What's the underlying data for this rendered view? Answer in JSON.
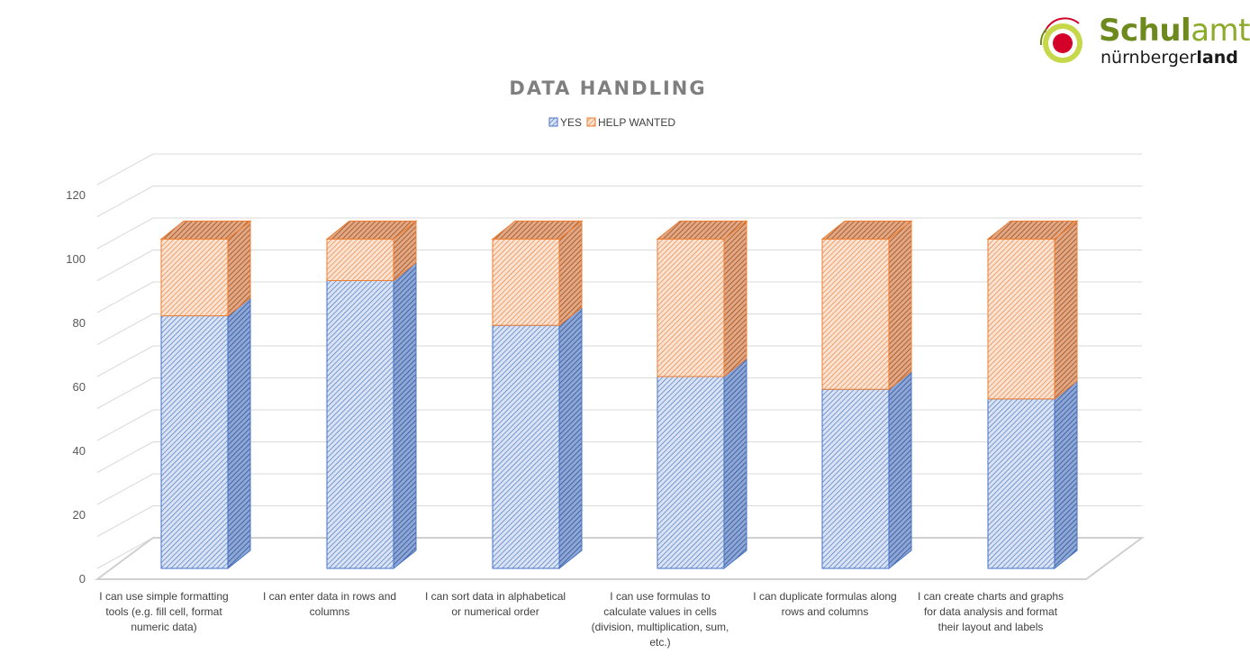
{
  "logo": {
    "name_bold": "Schul",
    "name_light": "amt",
    "sub_regular": "nürnberger",
    "sub_bold": "land"
  },
  "chart_data": {
    "type": "bar",
    "stacked": true,
    "three_d": true,
    "title": "DATA HANDLING",
    "legend_position": "top",
    "categories": [
      "I can use simple formatting tools (e.g. fill cell, format numeric data)",
      "I can enter data in rows and columns",
      "I can sort data in alphabetical or numerical order",
      "I can use formulas to calculate values in cells (division, multiplication, sum, etc.)",
      "I can duplicate formulas along rows and columns",
      "I can create charts and graphs for data analysis and format their layout and labels"
    ],
    "category_label_lines": [
      [
        "I can use simple formatting",
        "tools (e.g. fill cell, format",
        "numeric data)"
      ],
      [
        "I can enter data in rows and",
        "columns"
      ],
      [
        "I can sort data in alphabetical",
        "or numerical order"
      ],
      [
        "I can use formulas to",
        "calculate values in cells",
        "(division, multiplication, sum,",
        "etc.)"
      ],
      [
        "I can duplicate formulas along",
        "rows and columns"
      ],
      [
        "I can create charts and graphs",
        "for data analysis and format",
        "their layout and labels"
      ]
    ],
    "series": [
      {
        "name": "YES",
        "values": [
          79,
          90,
          76,
          60,
          56,
          53
        ],
        "color": "#4472c4"
      },
      {
        "name": "HELP WANTED",
        "values": [
          24,
          13,
          27,
          43,
          47,
          50
        ],
        "color": "#ed7d31"
      }
    ],
    "yticks": [
      0,
      20,
      40,
      60,
      80,
      100,
      120
    ],
    "ylim": [
      0,
      120
    ],
    "grid": true
  }
}
